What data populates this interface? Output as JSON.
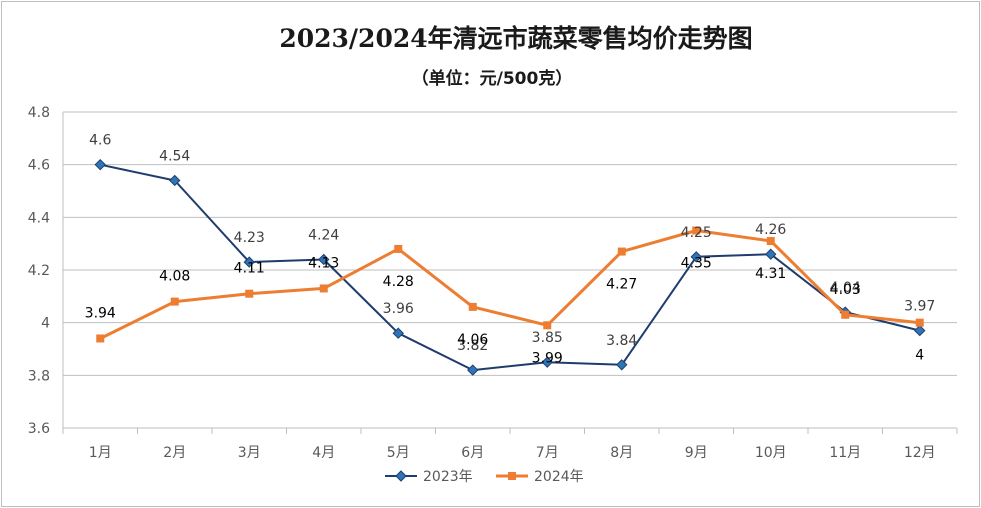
{
  "chart_data": {
    "type": "line",
    "title": "2023/2024年清远市蔬菜零售均价走势图",
    "subtitle": "（单位：元/500克）",
    "categories": [
      "1月",
      "2月",
      "3月",
      "4月",
      "5月",
      "6月",
      "7月",
      "8月",
      "9月",
      "10月",
      "11月",
      "12月"
    ],
    "series": [
      {
        "name": "2023年",
        "values": [
          4.6,
          4.54,
          4.23,
          4.24,
          3.96,
          3.82,
          3.85,
          3.84,
          4.25,
          4.26,
          4.04,
          3.97
        ],
        "labels": [
          "4.6",
          "4.54",
          "4.23",
          "4.24",
          "3.96",
          "3.82",
          "3.85",
          "3.84",
          "4.25",
          "4.26",
          "4.04",
          "3.97"
        ],
        "color": "#1f3c6e",
        "marker": "diamond"
      },
      {
        "name": "2024年",
        "values": [
          3.94,
          4.08,
          4.11,
          4.13,
          4.28,
          4.06,
          3.99,
          4.27,
          4.35,
          4.31,
          4.03,
          4.0
        ],
        "labels": [
          "3.94",
          "4.08",
          "4.11",
          "4.13",
          "4.28",
          "4.06",
          "3.99",
          "4.27",
          "4.35",
          "4.31",
          "4.03",
          "4"
        ],
        "color": "#ed7d31",
        "marker": "square"
      }
    ],
    "ylim": [
      3.6,
      4.8
    ],
    "yticks": [
      "3.6",
      "3.8",
      "4",
      "4.2",
      "4.4",
      "4.6",
      "4.8"
    ],
    "grid": true,
    "legend_position": "bottom"
  }
}
